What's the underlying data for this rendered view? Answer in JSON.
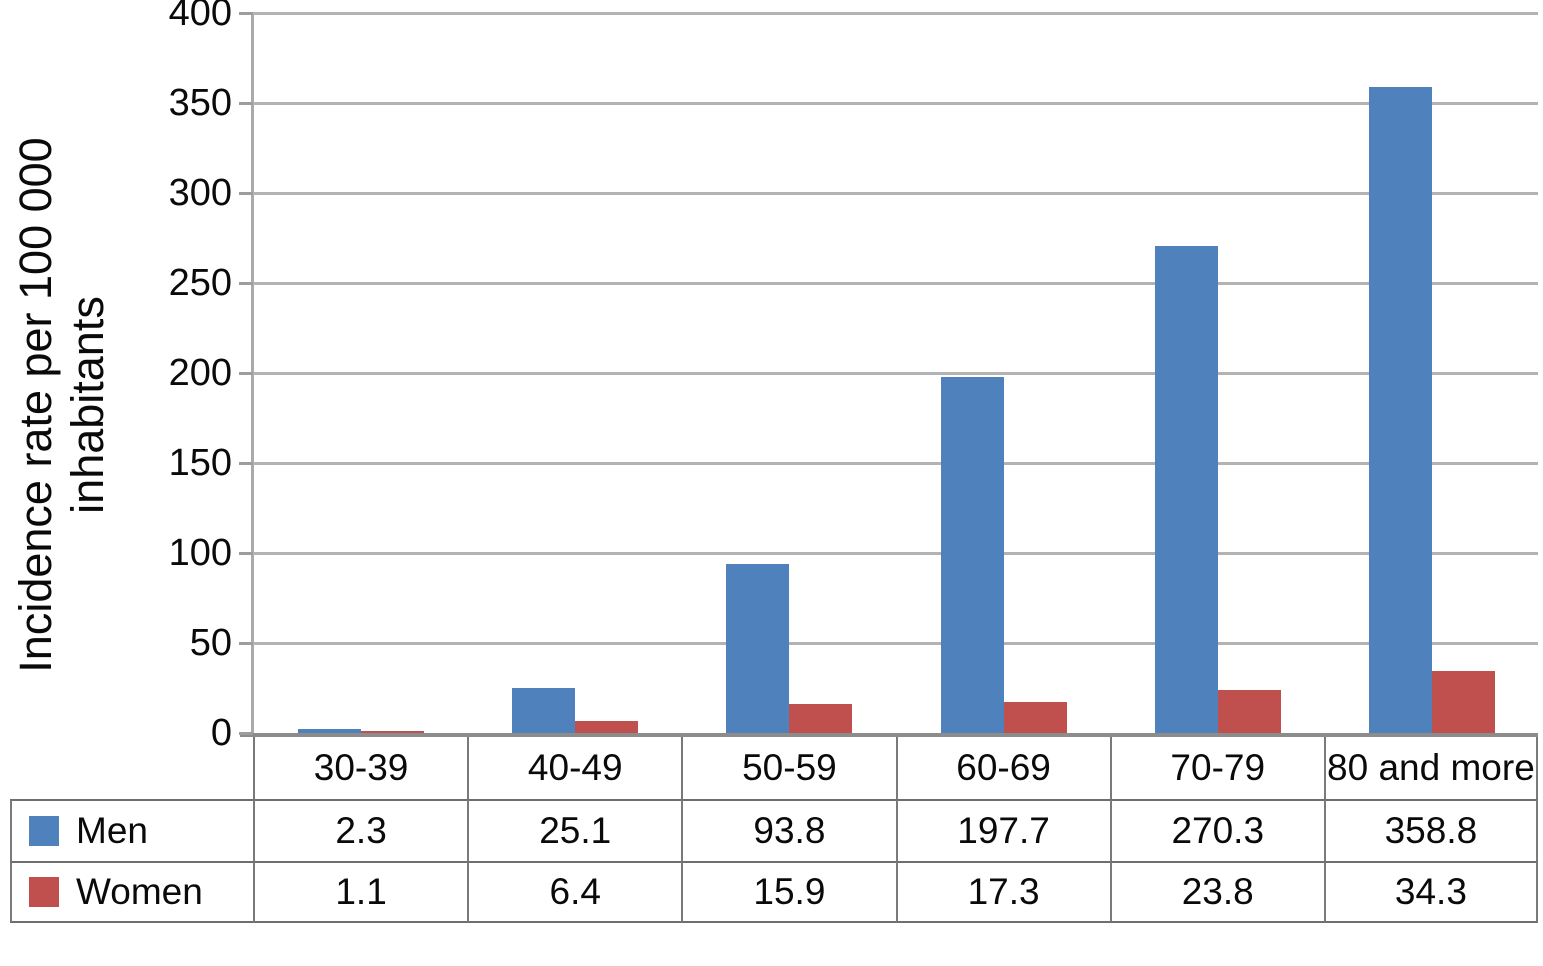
{
  "chart_data": {
    "type": "bar",
    "title": "",
    "xlabel": "",
    "ylabel": "Incidence rate per 100 000 inhabitants",
    "ylabel_lines": [
      "Incidence rate per 100 000",
      "inhabitants"
    ],
    "categories": [
      "30-39",
      "40-49",
      "50-59",
      "60-69",
      "70-79",
      "80 and more"
    ],
    "series": [
      {
        "name": "Men",
        "color": "#4f81bd",
        "values": [
          2.3,
          25.1,
          93.8,
          197.7,
          270.3,
          358.8
        ]
      },
      {
        "name": "Women",
        "color": "#c0504d",
        "values": [
          1.1,
          6.4,
          15.9,
          17.3,
          23.8,
          34.3
        ]
      }
    ],
    "ylim": [
      0,
      400
    ],
    "yticks": [
      0,
      50,
      100,
      150,
      200,
      250,
      300,
      350,
      400
    ],
    "grid": true,
    "legend_position": "bottom-table-left",
    "colors": {
      "gridline": "#b3b3b3",
      "axis_line": "#aaaaaa",
      "baseline": "#8c8c8c",
      "table_border": "#7a7a7a",
      "text": "#0a0a0a",
      "background": "#ffffff"
    }
  }
}
